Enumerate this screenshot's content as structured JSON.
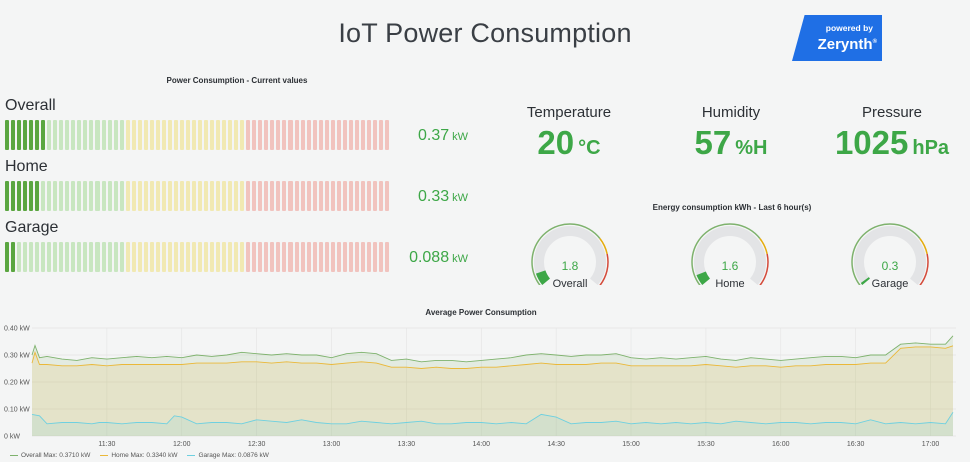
{
  "header": {
    "title": "IoT Power Consumption"
  },
  "logo": {
    "line1": "powered by",
    "line2": "Zerynth",
    "reg": "®"
  },
  "bar_panel": {
    "title": "Power Consumption - Current values",
    "rows": [
      {
        "label": "Overall",
        "value": "0.37",
        "unit": "kW",
        "level": 0.115
      },
      {
        "label": "Home",
        "value": "0.33",
        "unit": "kW",
        "level": 0.1
      },
      {
        "label": "Garage",
        "value": "0.088",
        "unit": "kW",
        "level": 0.03
      }
    ],
    "colors": {
      "green": "#5aa640",
      "yellow": "#f1e9b2",
      "red": "#f1c3be",
      "green_dim": "#c8e6c0"
    }
  },
  "stats": [
    {
      "label": "Temperature",
      "value": "20",
      "unit": "°C"
    },
    {
      "label": "Humidity",
      "value": "57",
      "unit": "%H"
    },
    {
      "label": "Pressure",
      "value": "1025",
      "unit": "hPa"
    }
  ],
  "gauge_panel": {
    "title": "Energy consumption kWh - Last 6 hour(s)",
    "gauges": [
      {
        "label": "Overall",
        "value": "1.8",
        "fraction": 0.08
      },
      {
        "label": "Home",
        "value": "1.6",
        "fraction": 0.07
      },
      {
        "label": "Garage",
        "value": "0.3",
        "fraction": 0.015
      }
    ]
  },
  "chart_data": {
    "type": "area",
    "title": "Average Power Consumption",
    "y_ticks": [
      "0 kW",
      "0.10 kW",
      "0.20 kW",
      "0.30 kW",
      "0.40 kW"
    ],
    "ylim": [
      0,
      0.4
    ],
    "x_ticks": [
      "11:30",
      "12:00",
      "12:30",
      "13:00",
      "13:30",
      "14:00",
      "14:30",
      "15:00",
      "15:30",
      "16:00",
      "16:30",
      "17:00"
    ],
    "x_tick_hours": [
      11.5,
      12.0,
      12.5,
      13.0,
      13.5,
      14.0,
      14.5,
      15.0,
      15.5,
      16.0,
      16.5,
      17.0
    ],
    "x_range_hours": [
      11.0,
      17.17
    ],
    "series": [
      {
        "name": "Overall",
        "legend": "Overall  Max: 0.3710 kW",
        "color": "#7eb26d",
        "x": [
          11.0,
          11.02,
          11.05,
          11.1,
          11.2,
          11.3,
          11.4,
          11.5,
          11.6,
          11.7,
          11.8,
          11.9,
          12.0,
          12.1,
          12.2,
          12.3,
          12.4,
          12.5,
          12.6,
          12.7,
          12.8,
          12.9,
          13.0,
          13.1,
          13.2,
          13.3,
          13.4,
          13.5,
          13.6,
          13.7,
          13.8,
          13.9,
          14.0,
          14.1,
          14.2,
          14.3,
          14.4,
          14.5,
          14.6,
          14.7,
          14.8,
          14.9,
          15.0,
          15.1,
          15.2,
          15.3,
          15.4,
          15.5,
          15.6,
          15.7,
          15.8,
          15.9,
          16.0,
          16.1,
          16.2,
          16.3,
          16.4,
          16.5,
          16.6,
          16.7,
          16.8,
          16.9,
          17.0,
          17.1,
          17.15
        ],
        "y": [
          0.3,
          0.335,
          0.29,
          0.295,
          0.285,
          0.28,
          0.29,
          0.285,
          0.29,
          0.295,
          0.29,
          0.295,
          0.29,
          0.3,
          0.295,
          0.3,
          0.31,
          0.305,
          0.3,
          0.305,
          0.3,
          0.3,
          0.29,
          0.305,
          0.31,
          0.305,
          0.28,
          0.285,
          0.275,
          0.28,
          0.28,
          0.275,
          0.28,
          0.285,
          0.29,
          0.3,
          0.305,
          0.3,
          0.295,
          0.3,
          0.3,
          0.305,
          0.29,
          0.285,
          0.29,
          0.285,
          0.29,
          0.295,
          0.285,
          0.28,
          0.29,
          0.285,
          0.28,
          0.285,
          0.29,
          0.295,
          0.295,
          0.29,
          0.3,
          0.3,
          0.34,
          0.345,
          0.34,
          0.34,
          0.371
        ]
      },
      {
        "name": "Home",
        "legend": "Home  Max: 0.3340 kW",
        "color": "#eab839",
        "x": [
          11.0,
          11.02,
          11.05,
          11.1,
          11.2,
          11.3,
          11.4,
          11.5,
          11.6,
          11.7,
          11.8,
          11.9,
          12.0,
          12.1,
          12.2,
          12.3,
          12.4,
          12.5,
          12.6,
          12.7,
          12.8,
          12.9,
          13.0,
          13.1,
          13.2,
          13.3,
          13.4,
          13.5,
          13.6,
          13.7,
          13.8,
          13.9,
          14.0,
          14.1,
          14.2,
          14.3,
          14.4,
          14.5,
          14.6,
          14.7,
          14.8,
          14.9,
          15.0,
          15.1,
          15.2,
          15.3,
          15.4,
          15.5,
          15.6,
          15.7,
          15.8,
          15.9,
          16.0,
          16.1,
          16.2,
          16.3,
          16.4,
          16.5,
          16.6,
          16.7,
          16.8,
          16.9,
          17.0,
          17.1,
          17.15
        ],
        "y": [
          0.27,
          0.31,
          0.265,
          0.265,
          0.26,
          0.26,
          0.265,
          0.26,
          0.265,
          0.265,
          0.265,
          0.265,
          0.265,
          0.27,
          0.27,
          0.27,
          0.275,
          0.275,
          0.27,
          0.275,
          0.27,
          0.27,
          0.265,
          0.27,
          0.275,
          0.27,
          0.255,
          0.255,
          0.25,
          0.255,
          0.25,
          0.25,
          0.255,
          0.255,
          0.26,
          0.265,
          0.27,
          0.265,
          0.265,
          0.265,
          0.27,
          0.27,
          0.26,
          0.26,
          0.26,
          0.26,
          0.26,
          0.265,
          0.26,
          0.255,
          0.26,
          0.26,
          0.255,
          0.26,
          0.26,
          0.265,
          0.265,
          0.265,
          0.27,
          0.27,
          0.325,
          0.33,
          0.33,
          0.325,
          0.334
        ]
      },
      {
        "name": "Garage",
        "legend": "Garage  Max: 0.0876 kW",
        "color": "#6ed0e0",
        "x": [
          11.0,
          11.05,
          11.1,
          11.2,
          11.3,
          11.4,
          11.45,
          11.5,
          11.6,
          11.7,
          11.8,
          11.9,
          11.95,
          12.0,
          12.1,
          12.2,
          12.3,
          12.4,
          12.5,
          12.6,
          12.7,
          12.8,
          12.9,
          13.0,
          13.1,
          13.2,
          13.3,
          13.4,
          13.5,
          13.6,
          13.7,
          13.8,
          13.9,
          14.0,
          14.1,
          14.2,
          14.3,
          14.4,
          14.5,
          14.6,
          14.7,
          14.8,
          14.9,
          15.0,
          15.1,
          15.2,
          15.3,
          15.4,
          15.5,
          15.6,
          15.7,
          15.8,
          15.9,
          16.0,
          16.1,
          16.2,
          16.3,
          16.4,
          16.5,
          16.6,
          16.7,
          16.8,
          16.9,
          17.0,
          17.1,
          17.15
        ],
        "y": [
          0.08,
          0.075,
          0.045,
          0.05,
          0.05,
          0.045,
          0.05,
          0.05,
          0.045,
          0.05,
          0.05,
          0.045,
          0.075,
          0.07,
          0.045,
          0.05,
          0.05,
          0.045,
          0.06,
          0.055,
          0.05,
          0.06,
          0.05,
          0.045,
          0.045,
          0.055,
          0.05,
          0.045,
          0.05,
          0.055,
          0.045,
          0.045,
          0.05,
          0.05,
          0.045,
          0.05,
          0.045,
          0.08,
          0.07,
          0.045,
          0.05,
          0.05,
          0.055,
          0.045,
          0.05,
          0.045,
          0.05,
          0.045,
          0.05,
          0.045,
          0.055,
          0.05,
          0.045,
          0.05,
          0.05,
          0.045,
          0.05,
          0.05,
          0.045,
          0.06,
          0.045,
          0.05,
          0.045,
          0.05,
          0.045,
          0.0876
        ]
      }
    ]
  }
}
